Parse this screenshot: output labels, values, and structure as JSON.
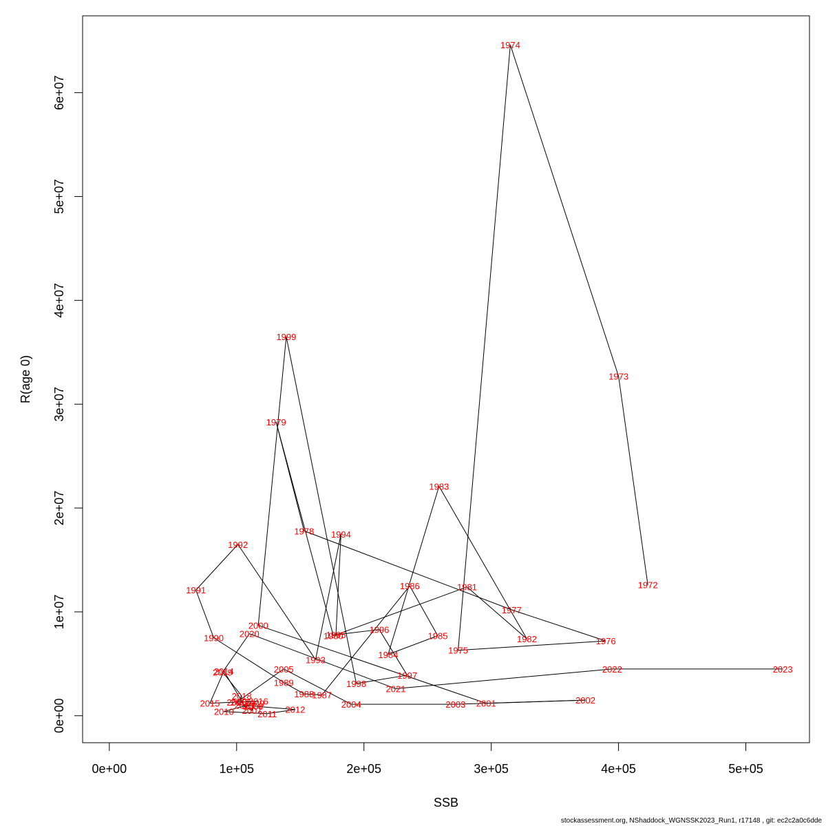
{
  "chart_data": {
    "type": "line",
    "xlabel": "SSB",
    "ylabel": "R(age 0)",
    "xlim": [
      -21000,
      550000
    ],
    "ylim": [
      -2600000,
      67400000
    ],
    "x_ticks": [
      0,
      100000,
      200000,
      300000,
      400000,
      500000
    ],
    "x_tick_labels": [
      "0e+00",
      "1e+05",
      "2e+05",
      "3e+05",
      "4e+05",
      "5e+05"
    ],
    "y_ticks": [
      0,
      10000000,
      20000000,
      30000000,
      40000000,
      50000000,
      60000000
    ],
    "y_tick_labels": [
      "0e+00",
      "1e+07",
      "2e+07",
      "3e+07",
      "4e+07",
      "5e+07",
      "6e+07"
    ],
    "grid": false,
    "points": [
      {
        "year": "1972",
        "ssb": 423000,
        "r": 12600000
      },
      {
        "year": "1973",
        "ssb": 400000,
        "r": 32700000
      },
      {
        "year": "1974",
        "ssb": 315000,
        "r": 64600000
      },
      {
        "year": "1975",
        "ssb": 274000,
        "r": 6300000
      },
      {
        "year": "1976",
        "ssb": 390000,
        "r": 7200000
      },
      {
        "year": "1977",
        "ssb": 316000,
        "r": 10200000
      },
      {
        "year": "1978",
        "ssb": 153000,
        "r": 17800000
      },
      {
        "year": "1979",
        "ssb": 131000,
        "r": 28300000
      },
      {
        "year": "1980",
        "ssb": 176000,
        "r": 7700000
      },
      {
        "year": "1981",
        "ssb": 281000,
        "r": 12400000
      },
      {
        "year": "1982",
        "ssb": 328000,
        "r": 7400000
      },
      {
        "year": "1983",
        "ssb": 259000,
        "r": 22100000
      },
      {
        "year": "1984",
        "ssb": 219000,
        "r": 5900000
      },
      {
        "year": "1985",
        "ssb": 258000,
        "r": 7700000
      },
      {
        "year": "1986",
        "ssb": 236000,
        "r": 12500000
      },
      {
        "year": "1987",
        "ssb": 167000,
        "r": 2000000
      },
      {
        "year": "1988",
        "ssb": 153000,
        "r": 2100000
      },
      {
        "year": "1989",
        "ssb": 137000,
        "r": 3200000
      },
      {
        "year": "1990",
        "ssb": 82000,
        "r": 7500000
      },
      {
        "year": "1991",
        "ssb": 68000,
        "r": 12100000
      },
      {
        "year": "1992",
        "ssb": 101000,
        "r": 16500000
      },
      {
        "year": "1993",
        "ssb": 162000,
        "r": 5400000
      },
      {
        "year": "1994",
        "ssb": 182000,
        "r": 17500000
      },
      {
        "year": "1995",
        "ssb": 178000,
        "r": 7800000
      },
      {
        "year": "1996",
        "ssb": 212000,
        "r": 8300000
      },
      {
        "year": "1997",
        "ssb": 234000,
        "r": 3900000
      },
      {
        "year": "1998",
        "ssb": 194000,
        "r": 3100000
      },
      {
        "year": "1999",
        "ssb": 139000,
        "r": 36500000
      },
      {
        "year": "2000",
        "ssb": 117000,
        "r": 8700000
      },
      {
        "year": "2001",
        "ssb": 296000,
        "r": 1200000
      },
      {
        "year": "2002",
        "ssb": 374000,
        "r": 1500000
      },
      {
        "year": "2003",
        "ssb": 272000,
        "r": 1100000
      },
      {
        "year": "2004",
        "ssb": 190000,
        "r": 1100000
      },
      {
        "year": "2005",
        "ssb": 137000,
        "r": 4500000
      },
      {
        "year": "2006",
        "ssb": 100000,
        "r": 1300000
      },
      {
        "year": "2007",
        "ssb": 112000,
        "r": 500000
      },
      {
        "year": "2008",
        "ssb": 113000,
        "r": 900000
      },
      {
        "year": "2009",
        "ssb": 114000,
        "r": 1200000
      },
      {
        "year": "2010",
        "ssb": 90000,
        "r": 400000
      },
      {
        "year": "2011",
        "ssb": 124000,
        "r": 200000
      },
      {
        "year": "2012",
        "ssb": 146000,
        "r": 600000
      },
      {
        "year": "2013",
        "ssb": 106000,
        "r": 1000000
      },
      {
        "year": "2014",
        "ssb": 90000,
        "r": 4300000
      },
      {
        "year": "2015",
        "ssb": 79000,
        "r": 1200000
      },
      {
        "year": "2016",
        "ssb": 117000,
        "r": 1400000
      },
      {
        "year": "2017",
        "ssb": 103000,
        "r": 1300000
      },
      {
        "year": "2018",
        "ssb": 104000,
        "r": 1900000
      },
      {
        "year": "2019",
        "ssb": 89000,
        "r": 4200000
      },
      {
        "year": "2020",
        "ssb": 110000,
        "r": 7900000
      },
      {
        "year": "2021",
        "ssb": 225000,
        "r": 2600000
      },
      {
        "year": "2022",
        "ssb": 395000,
        "r": 4500000
      },
      {
        "year": "2023",
        "ssb": 529000,
        "r": 4500000
      }
    ]
  },
  "footer": "stockassessment.org, NShaddock_WGNSSK2023_Run1, r17148 , git: ec2c2a0c6dde"
}
